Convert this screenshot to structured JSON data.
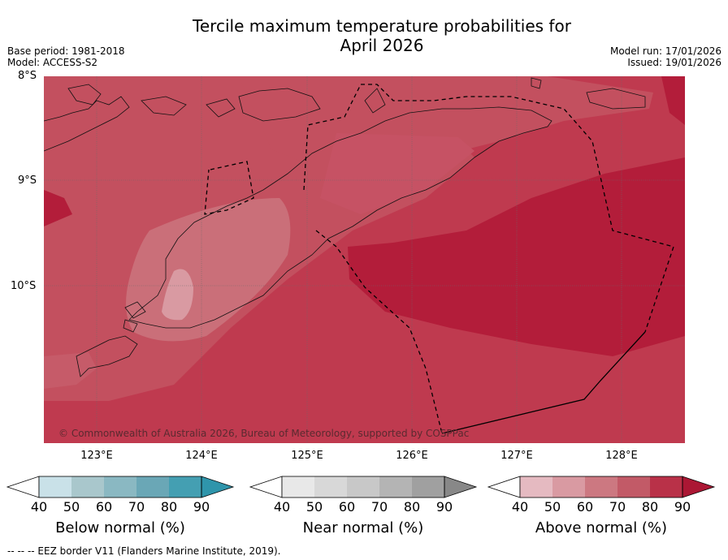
{
  "title_line1": "Tercile maximum temperature probabilities for",
  "title_line2": "April 2026",
  "meta": {
    "base_period": "Base period: 1981-2018",
    "model": "Model: ACCESS-S2",
    "model_run": "Model run: 17/01/2026",
    "issued": "Issued: 19/01/2026"
  },
  "map": {
    "lat_labels": [
      "8°S",
      "9°S",
      "10°S"
    ],
    "lon_labels": [
      "123°E",
      "124°E",
      "125°E",
      "126°E",
      "127°E",
      "128°E"
    ],
    "copyright": "© Commonwealth of Australia 2026, Bureau of Meteorology, supported by COSPPac"
  },
  "colorbars": [
    {
      "label": "Below normal (%)",
      "ticks": [
        "40",
        "50",
        "60",
        "70",
        "80",
        "90"
      ],
      "colors": [
        "#ffffff",
        "#c9e1e8",
        "#a9c7cc",
        "#8ab8c2",
        "#6aa7b6",
        "#449fb2",
        "#2f95ab"
      ]
    },
    {
      "label": "Near normal (%)",
      "ticks": [
        "40",
        "50",
        "60",
        "70",
        "80",
        "90"
      ],
      "colors": [
        "#ffffff",
        "#e8e8e8",
        "#d8d8d8",
        "#c8c8c8",
        "#b4b4b4",
        "#a0a0a0",
        "#888888"
      ]
    },
    {
      "label": "Above normal (%)",
      "ticks": [
        "40",
        "50",
        "60",
        "70",
        "80",
        "90"
      ],
      "colors": [
        "#ffffff",
        "#e5bac1",
        "#d99aa2",
        "#cc7881",
        "#c25a67",
        "#b93148",
        "#ab1734"
      ]
    }
  ],
  "footnote": "--  --  -- EEZ border V11 (Flanders Marine Institute, 2019)."
}
